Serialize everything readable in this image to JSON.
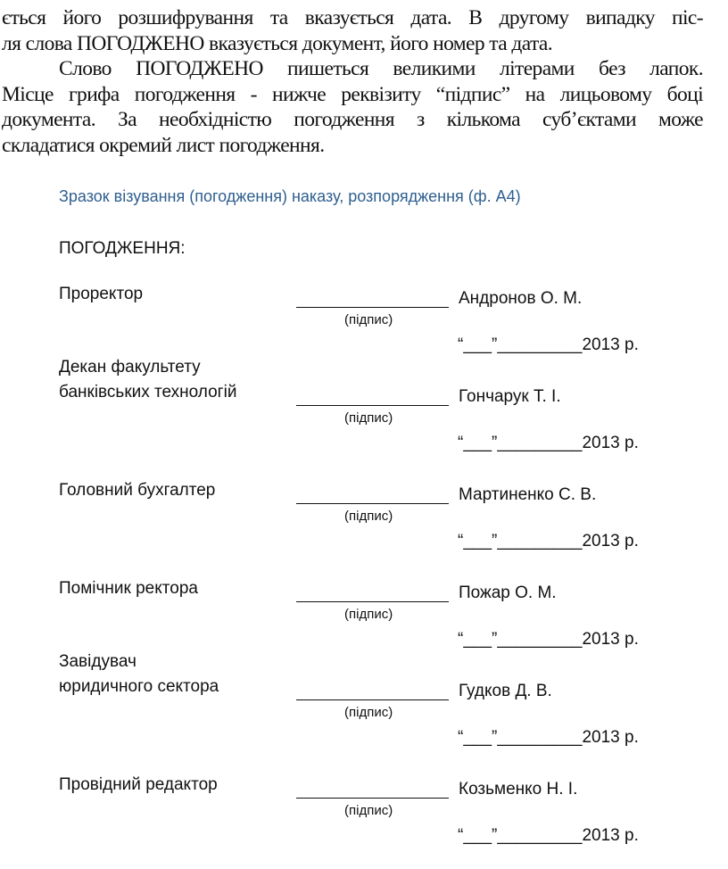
{
  "intro": {
    "lines": [
      "ється його розшифрування та вказується дата. В другому випадку піс-",
      "ля слова ПОГОДЖЕНО вказується документ, його номер та дата.",
      "Слово ПОГОДЖЕНО пишеться великими літерами без лапок.",
      "Місце грифа погодження - нижче реквізиту “підпис” на лицьовому боці",
      "документа. За необхідністю погодження з кількома суб’єктами може",
      "складатися окремий лист погодження."
    ]
  },
  "caption": "Зразок візування (погодження) наказу, розпорядження (ф. А4)",
  "heading": "ПОГОДЖЕННЯ:",
  "signature_label": "(підпис)",
  "date_template": "“___”_________2013 р.",
  "approvals": [
    {
      "position": "Проректор",
      "name": "Андронов О. М."
    },
    {
      "position": "Декан факультету\nбанківських технологій",
      "name": "Гончарук Т. І."
    },
    {
      "position": "Головний бухгалтер",
      "name": "Мартиненко С. В."
    },
    {
      "position": "Помічник ректора",
      "name": "Пожар О. М."
    },
    {
      "position": "Завідувач\nюридичного сектора",
      "name": "Гудков Д. В."
    },
    {
      "position": "Провідний редактор",
      "name": "Козьменко Н. І."
    }
  ],
  "colors": {
    "caption": "#2f5f8f",
    "text": "#111111"
  }
}
